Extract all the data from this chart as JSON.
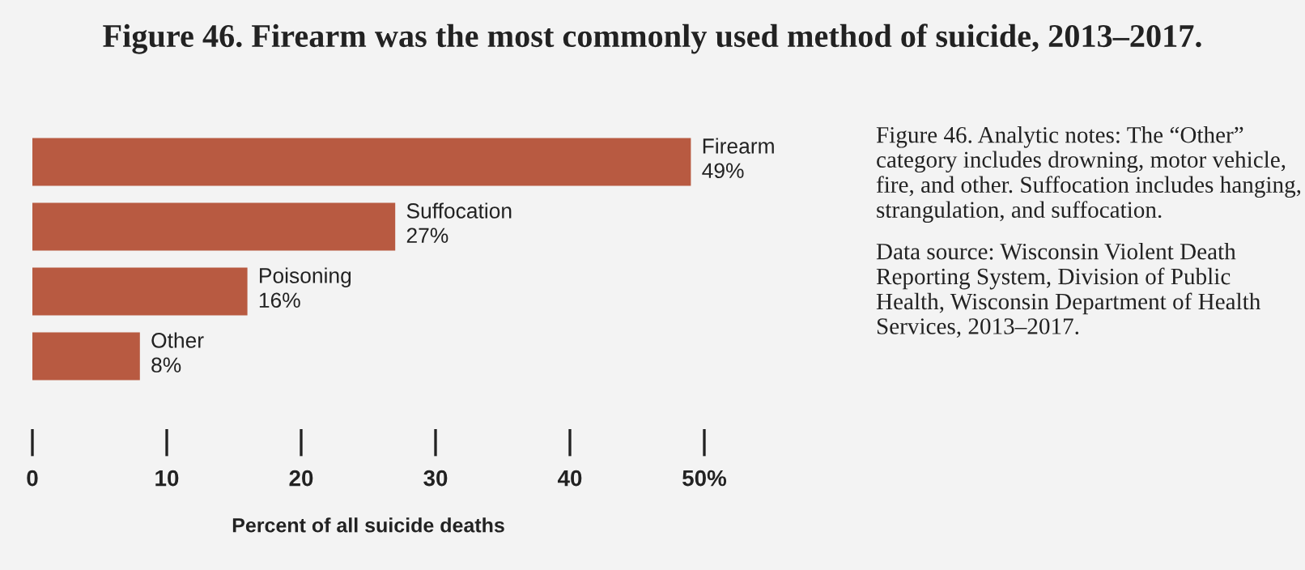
{
  "chart_data": {
    "type": "bar",
    "orientation": "horizontal",
    "title": "Figure 46. Firearm was the most commonly used method of suicide, 2013–2017.",
    "categories": [
      "Firearm",
      "Suffocation",
      "Poisoning",
      "Other"
    ],
    "values": [
      49,
      27,
      16,
      8
    ],
    "value_labels": [
      "49%",
      "27%",
      "16%",
      "8%"
    ],
    "color": "#b85a41",
    "xlim": [
      0,
      50
    ],
    "xticks": [
      0,
      10,
      20,
      30,
      40,
      {
        "value": 50,
        "label": "50%"
      }
    ],
    "xlabel": "Percent of all suicide deaths",
    "grid": false,
    "legend": false,
    "annotations": [
      "Figure 46. Analytic notes: The “Other” category includes drowning, motor vehicle, fire, and other. Suffocation includes hanging, strangulation, and suffocation.",
      "Data source: Wisconsin Violent Death Reporting System, Division of Public Health, Wisconsin Department of Health Services, 2013–2017."
    ]
  }
}
